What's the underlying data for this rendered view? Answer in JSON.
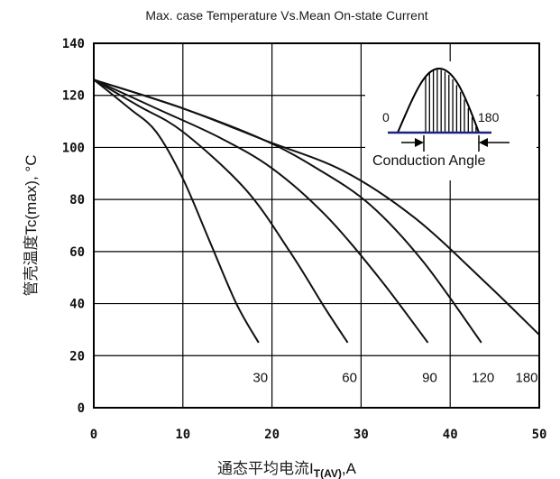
{
  "chart_data": {
    "type": "line",
    "title": "Max. case Temperature Vs.Mean On-state Current",
    "ylabel_cjk": "管壳温度",
    "ylabel_latin": "Tc(max), °C",
    "xlabel_cjk": "通态平均电流",
    "xlabel_main": "I",
    "xlabel_sub": "T(AV)",
    "xlabel_unit": ",A",
    "xlim": [
      0,
      50
    ],
    "ylim": [
      0,
      140
    ],
    "x_ticks": [
      "0",
      "10",
      "20",
      "30",
      "40",
      "50"
    ],
    "y_ticks": [
      "0",
      "20",
      "40",
      "60",
      "80",
      "100",
      "120",
      "140"
    ],
    "grid": true,
    "series": [
      {
        "name": "30",
        "x": [
          0,
          4,
          7,
          10,
          13,
          16,
          18.5
        ],
        "y": [
          126,
          115,
          106,
          88,
          64,
          40,
          25
        ]
      },
      {
        "name": "60",
        "x": [
          0,
          5,
          10,
          17,
          22,
          26,
          28.5
        ],
        "y": [
          126,
          116,
          106,
          84,
          60,
          38,
          25
        ]
      },
      {
        "name": "90",
        "x": [
          0,
          7,
          14,
          20,
          26,
          32,
          37.5
        ],
        "y": [
          126,
          115,
          104,
          92,
          74,
          50,
          25
        ]
      },
      {
        "name": "120",
        "x": [
          0,
          10,
          19,
          25,
          31,
          37,
          43.5
        ],
        "y": [
          126,
          115,
          103,
          92,
          78,
          56,
          25
        ]
      },
      {
        "name": "180",
        "x": [
          0,
          10,
          19,
          28,
          36,
          44,
          50
        ],
        "y": [
          126,
          115,
          103,
          91,
          73,
          48,
          28
        ]
      }
    ],
    "inset": {
      "start_label": "0",
      "end_label": "180",
      "caption": "Conduction Angle"
    }
  }
}
